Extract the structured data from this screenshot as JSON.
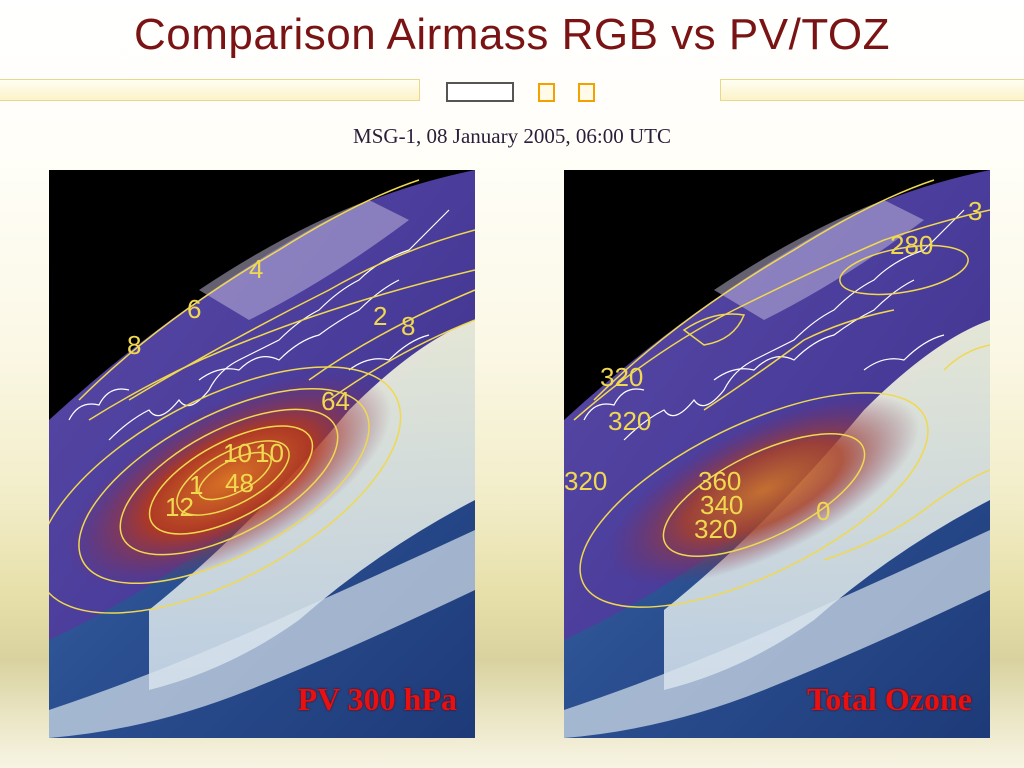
{
  "slide": {
    "title": "Comparison Airmass RGB vs PV/TOZ",
    "subtitle": "MSG-1, 08 January 2005, 06:00 UTC"
  },
  "panels": [
    {
      "label": "PV 300 hPa",
      "contour_labels": [
        "4",
        "6",
        "8",
        "2",
        "8",
        "64",
        "10",
        "10",
        "48",
        "1",
        "12"
      ]
    },
    {
      "label": "Total Ozone",
      "contour_labels": [
        "3",
        "280",
        "320",
        "320",
        "320",
        "360",
        "340",
        "320",
        "0"
      ]
    }
  ],
  "colors": {
    "title": "#7a1414",
    "panel_label": "#e81010",
    "contour": "#f0d850",
    "coastline": "#ffffff"
  }
}
